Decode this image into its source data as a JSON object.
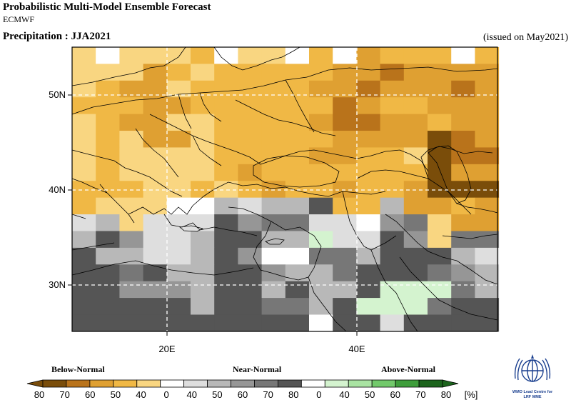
{
  "header": {
    "title": "Probabilistic Multi-Model Ensemble Forecast",
    "model": "ECMWF",
    "variable_label": "Precipitation : JJA2021",
    "issued": "(issued on May2021)"
  },
  "map": {
    "lat_labels": [
      "50N",
      "40N",
      "30N"
    ],
    "lon_labels": [
      "20E",
      "40E"
    ],
    "grid_lats": [
      50,
      40,
      30
    ],
    "grid_lons": [
      20,
      40
    ]
  },
  "legend": {
    "categories": [
      "Below-Normal",
      "Near-Normal",
      "Above-Normal"
    ],
    "ticks": [
      "80",
      "70",
      "60",
      "50",
      "40",
      "0",
      "40",
      "50",
      "60",
      "70",
      "80",
      "0",
      "40",
      "50",
      "60",
      "70",
      "80"
    ],
    "unit": "[%]",
    "colors": {
      "below": [
        "#7a4d0a",
        "#b9731b",
        "#dfa032",
        "#f0b845",
        "#f9d681"
      ],
      "normal": [
        "#ffffff",
        "#dedede",
        "#b8b8b8",
        "#969696",
        "#777777",
        "#555555"
      ],
      "above": [
        "#ffffff",
        "#d4f3cf",
        "#a9e3a2",
        "#72c96b",
        "#3e9d3b",
        "#1c641d"
      ]
    }
  },
  "logo": {
    "text_line1": "WMO Lead Centre for",
    "text_line2": "LRF MME"
  }
}
